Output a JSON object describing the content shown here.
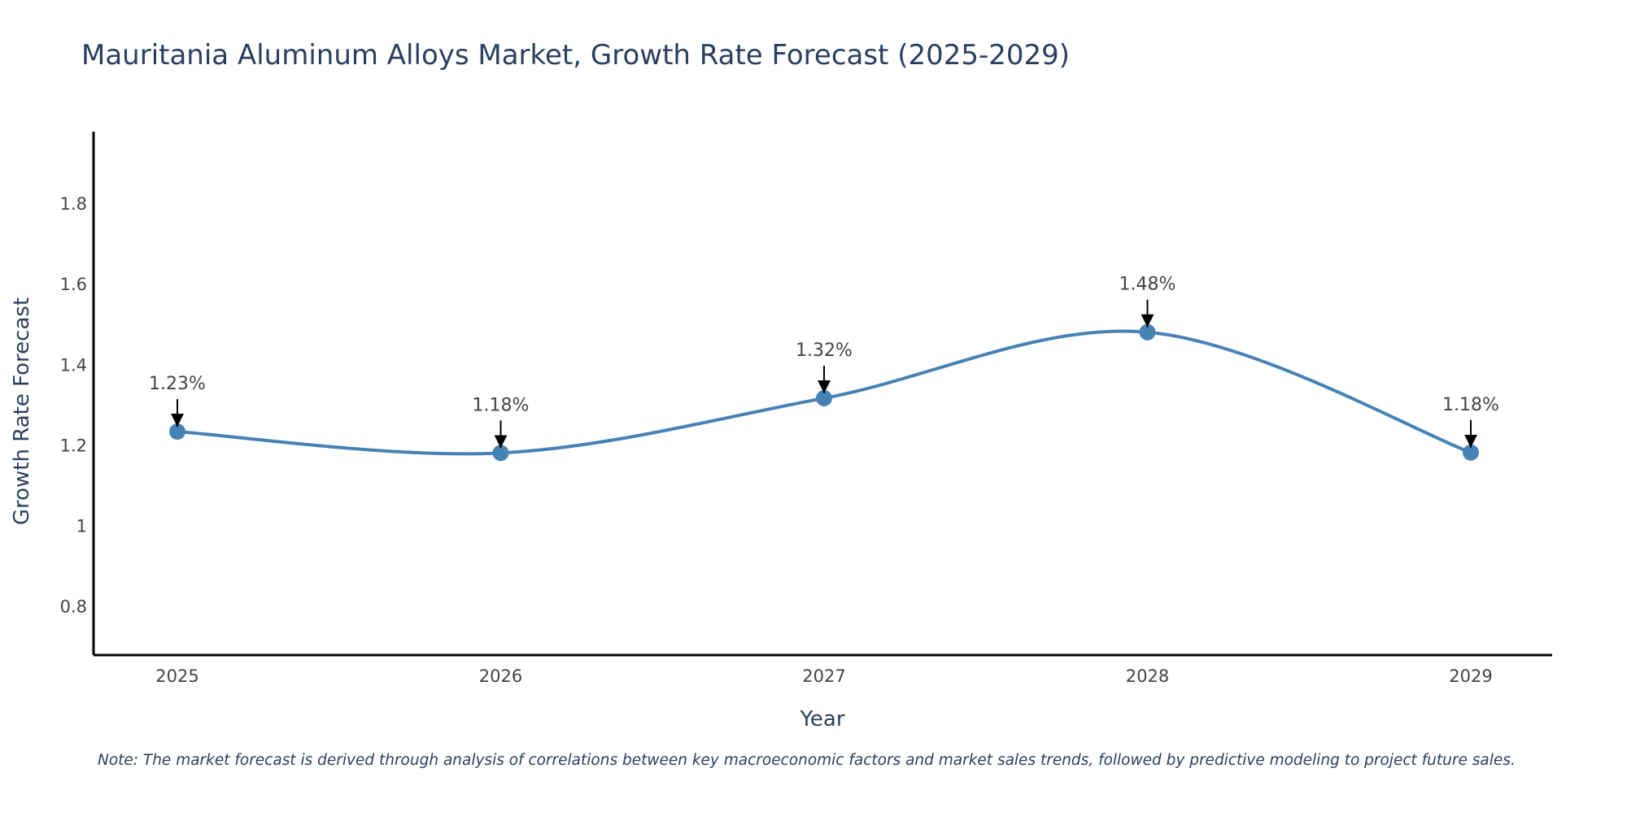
{
  "chart_data": {
    "type": "line",
    "title": "Mauritania Aluminum Alloys Market, Growth Rate Forecast (2025-2029)",
    "xlabel": "Year",
    "ylabel": "Growth Rate Forecast",
    "categories": [
      "2025",
      "2026",
      "2027",
      "2028",
      "2029"
    ],
    "values": [
      1.235,
      1.182,
      1.318,
      1.482,
      1.183
    ],
    "data_labels": [
      "1.23%",
      "1.18%",
      "1.32%",
      "1.48%",
      "1.18%"
    ],
    "yticks": [
      0.8,
      1,
      1.2,
      1.4,
      1.6,
      1.8
    ],
    "ytick_labels": [
      "0.8",
      "1",
      "1.2",
      "1.4",
      "1.6",
      "1.8"
    ],
    "ylim": [
      0.68,
      1.98
    ],
    "grid": false,
    "line_shape": "spline",
    "line_color": "#4682b4",
    "marker_color": "#4682b4",
    "arrow_color": "#000000",
    "axis_color": "#000000",
    "note": "Note: The market forecast is derived through analysis of correlations between key macroeconomic factors and market sales trends, followed by predictive modeling to project future sales."
  }
}
